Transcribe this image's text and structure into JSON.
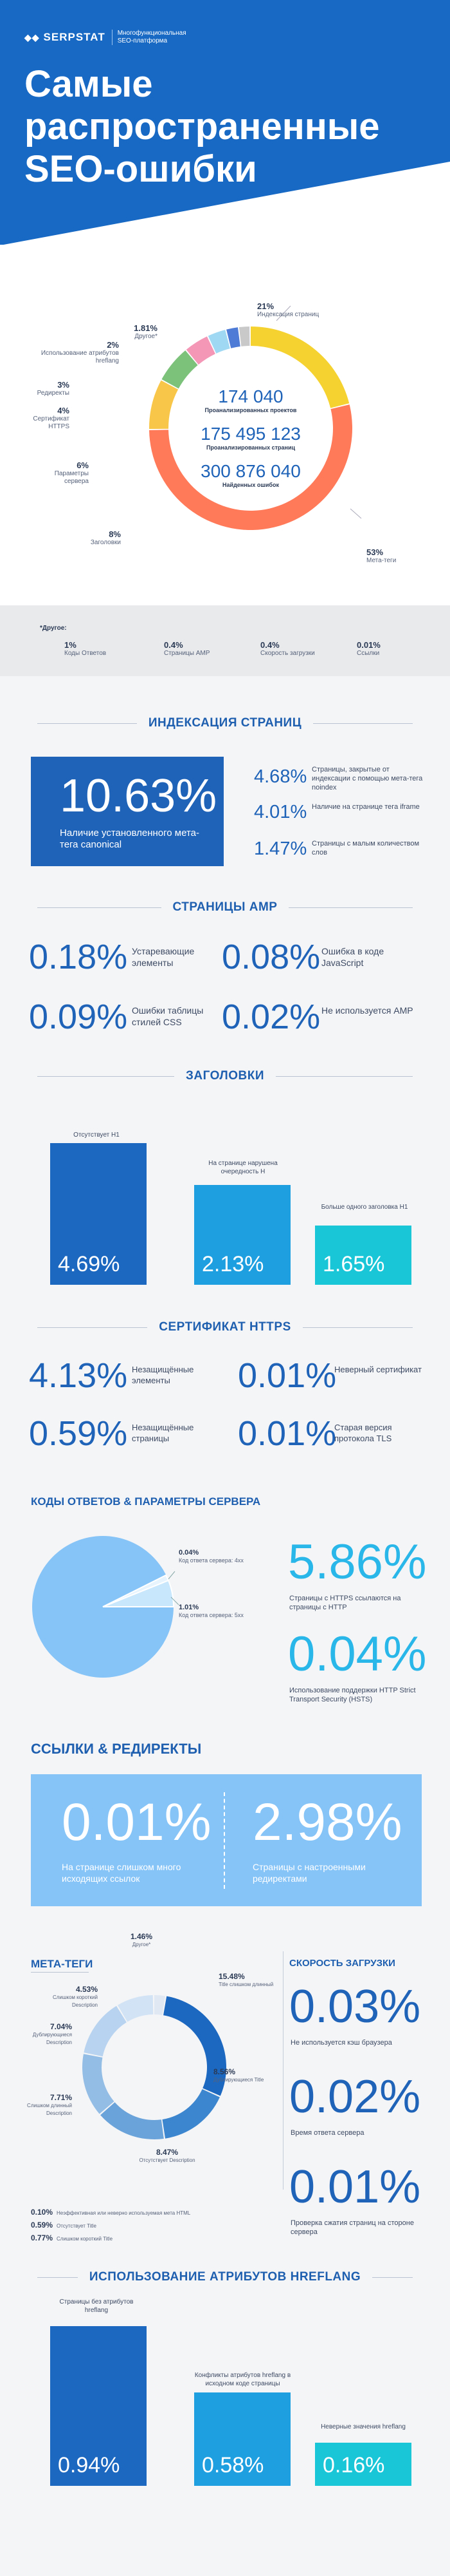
{
  "header": {
    "logo": "SERPSTAT",
    "tagline": "Многофункциональная SEO-платформа",
    "title": "Самые распространенные SEO-ошибки"
  },
  "donut": {
    "stats": [
      {
        "value": "174 040",
        "label": "Проанализированных проектов"
      },
      {
        "value": "175 495 123",
        "label": "Проанализированных страниц"
      },
      {
        "value": "300 876 040",
        "label": "Найденных ошибок"
      }
    ],
    "segments": [
      {
        "pct": "21%",
        "label": "Индексация страниц",
        "value": 21,
        "color": "#f5d22f"
      },
      {
        "pct": "53%",
        "label": "Мета-теги",
        "value": 53,
        "color": "#ff7a59"
      },
      {
        "pct": "8%",
        "label": "Заголовки",
        "value": 8,
        "color": "#f8c648"
      },
      {
        "pct": "6%",
        "label": "Параметры сервера",
        "value": 6,
        "color": "#7cc27b"
      },
      {
        "pct": "4%",
        "label": "Сертификат HTTPS",
        "value": 4,
        "color": "#f497b7"
      },
      {
        "pct": "3%",
        "label": "Редиректы",
        "value": 3,
        "color": "#9fd8f2"
      },
      {
        "pct": "2%",
        "label": "Использование атрибутов hreflang",
        "value": 2,
        "color": "#4e7bd6"
      },
      {
        "pct": "1.81%",
        "label": "Другое*",
        "value": 1.81,
        "color": "#c9c9c9"
      }
    ]
  },
  "other": {
    "title": "*Другое:",
    "items": [
      {
        "pct": "1%",
        "label": "Коды Ответов"
      },
      {
        "pct": "0.4%",
        "label": "Страницы AMP"
      },
      {
        "pct": "0.4%",
        "label": "Скорость загрузки"
      },
      {
        "pct": "0.01%",
        "label": "Ссылки"
      }
    ]
  },
  "indexing": {
    "heading": "ИНДЕКСАЦИЯ СТРАНИЦ",
    "main_value": "10.63%",
    "main_label": "Наличие установленного мета-тега canonical",
    "items": [
      {
        "value": "4.68%",
        "label": "Страницы, закрытые от индексации с помощью мета-тега noindex"
      },
      {
        "value": "4.01%",
        "label": "Наличие на странице тега iframe"
      },
      {
        "value": "1.47%",
        "label": "Страницы с малым количеством слов"
      }
    ]
  },
  "amp": {
    "heading": "СТРАНИЦЫ AMP",
    "items": [
      {
        "value": "0.18%",
        "label": "Устаревающие элементы"
      },
      {
        "value": "0.08%",
        "label": "Ошибка в коде JavaScript"
      },
      {
        "value": "0.09%",
        "label": "Ошибки таблицы стилей CSS"
      },
      {
        "value": "0.02%",
        "label": "Не используется AMP"
      }
    ]
  },
  "headings": {
    "heading": "ЗАГОЛОВКИ",
    "bars": [
      {
        "value": "4.69%",
        "label": "Отсутствует H1",
        "color": "#1c68c1"
      },
      {
        "value": "2.13%",
        "label": "На странице нарушена очередность H",
        "color": "#1d9fe0"
      },
      {
        "value": "1.65%",
        "label": "Больше одного заголовка H1",
        "color": "#19c6d8"
      }
    ]
  },
  "https": {
    "heading": "СЕРТИФИКАТ HTTPS",
    "items": [
      {
        "value": "4.13%",
        "label": "Незащищённые элементы"
      },
      {
        "value": "0.01%",
        "label": "Неверный сертификат"
      },
      {
        "value": "0.59%",
        "label": "Незащищённые страницы"
      },
      {
        "value": "0.01%",
        "label": "Старая версия протокола TLS"
      }
    ]
  },
  "server": {
    "heading": "КОДЫ ОТВЕТОВ & ПАРАМЕТРЫ СЕРВЕРА",
    "pie": [
      {
        "value": "0.04%",
        "label": "Код ответа сервера: 4хх"
      },
      {
        "value": "1.01%",
        "label": "Код ответа сервера: 5хх"
      }
    ],
    "items": [
      {
        "value": "5.86%",
        "label": "Страницы с HTTPS ссылаются на страницы с HTTP"
      },
      {
        "value": "0.04%",
        "label": "Использование поддержки HTTP Strict Transport Security (HSTS)"
      }
    ]
  },
  "links": {
    "heading": "ССЫЛКИ & РЕДИРЕКТЫ",
    "items": [
      {
        "value": "0.01%",
        "label": "На странице слишком много исходящих ссылок"
      },
      {
        "value": "2.98%",
        "label": "Страницы с настроенными редиректами"
      }
    ]
  },
  "meta": {
    "heading": "МЕТА-ТЕГИ",
    "segments": [
      {
        "value": "1.46%",
        "label": "Другое*"
      },
      {
        "value": "15.48%",
        "label": "Title слишком длинный"
      },
      {
        "value": "8.56%",
        "label": "Дублирующиеся Title"
      },
      {
        "value": "8.47%",
        "label": "Отсутствует Description"
      },
      {
        "value": "7.71%",
        "label": "Слишком длинный Description"
      },
      {
        "value": "7.04%",
        "label": "Дублирующиеся Description"
      },
      {
        "value": "4.53%",
        "label": "Слишком короткий Description"
      }
    ],
    "others": [
      {
        "value": "0.10%",
        "label": "Неэффективная или неверно используемая мета HTML"
      },
      {
        "value": "0.59%",
        "label": "Отсутствует Title"
      },
      {
        "value": "0.77%",
        "label": "Слишком короткий Title"
      }
    ]
  },
  "speed": {
    "heading": "СКОРОСТЬ ЗАГРУЗКИ",
    "items": [
      {
        "value": "0.03%",
        "label": "Не используется кэш браузера"
      },
      {
        "value": "0.02%",
        "label": "Время ответа сервера"
      },
      {
        "value": "0.01%",
        "label": "Проверка сжатия страниц на стороне сервера"
      }
    ]
  },
  "hreflang": {
    "heading": "ИСПОЛЬЗОВАНИЕ АТРИБУТОВ HREFLANG",
    "bars": [
      {
        "value": "0.94%",
        "label": "Страницы без атрибутов hreflang",
        "color": "#1c68c1"
      },
      {
        "value": "0.58%",
        "label": "Конфликты атрибутов hreflang в исходном коде страницы",
        "color": "#1d9fe0"
      },
      {
        "value": "0.16%",
        "label": "Неверные значения hreflang",
        "color": "#19c6d8"
      }
    ]
  }
}
